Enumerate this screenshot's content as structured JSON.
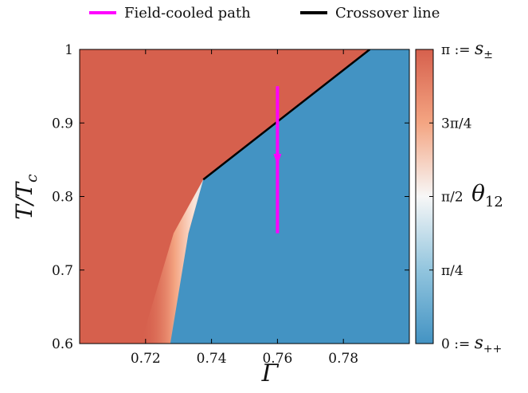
{
  "chart_data": {
    "type": "heatmap",
    "xlabel": "Γ",
    "ylabel": "T/T_c",
    "xlim": [
      0.7,
      0.8
    ],
    "ylim": [
      0.6,
      1.0
    ],
    "x_ticks": [
      "0.72",
      "0.74",
      "0.76",
      "0.78"
    ],
    "x_tick_values": [
      0.72,
      0.74,
      0.76,
      0.78
    ],
    "y_ticks": [
      "0.6",
      "0.7",
      "0.8",
      "0.9",
      "1"
    ],
    "y_tick_values": [
      0.6,
      0.7,
      0.8,
      0.9,
      1.0
    ],
    "colorbar": {
      "label": "θ12",
      "ticks": [
        "0 := s++",
        "π/4",
        "π/2",
        "3π/4",
        "π := s±"
      ],
      "tick_values": [
        0,
        0.25,
        0.5,
        0.75,
        1.0
      ],
      "colors": [
        "#4393c3",
        "#92c5de",
        "#f7f7f7",
        "#f4a582",
        "#d6604d"
      ]
    },
    "legend": {
      "placement": "top",
      "entries": [
        {
          "label": "Field-cooled path",
          "color": "#ff00ff"
        },
        {
          "label": "Crossover line",
          "color": "#000000"
        }
      ]
    },
    "regions": {
      "s_pm_color": "#d6604d",
      "s_pp_color": "#4393c3"
    },
    "crossover_line": {
      "x": [
        0.7375,
        0.788
      ],
      "y": [
        0.823,
        1.0
      ]
    },
    "transition_boundary": {
      "x": [
        0.7375,
        0.733,
        0.729,
        0.7275
      ],
      "y": [
        0.823,
        0.75,
        0.67,
        0.6
      ]
    },
    "field_cooled_path": {
      "x": [
        0.76,
        0.76
      ],
      "y": [
        0.95,
        0.75
      ],
      "arrow_at_y": 0.845
    }
  }
}
